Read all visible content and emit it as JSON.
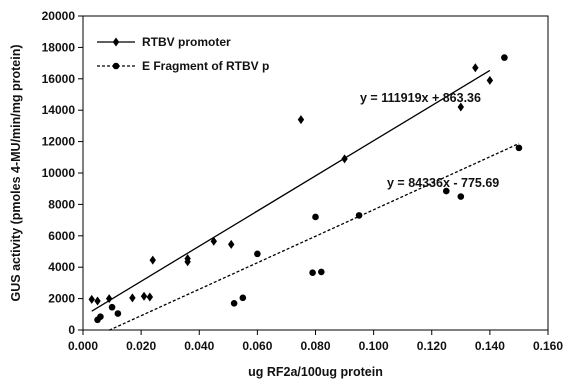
{
  "chart_data": {
    "type": "scatter",
    "xlabel": "ug RF2a/100ug protein",
    "ylabel": "GUS activity (pmoles 4-MU/min/mg protein)",
    "xlim": [
      0,
      0.16
    ],
    "ylim": [
      0,
      20000
    ],
    "x_ticks": [
      0,
      0.02,
      0.04,
      0.06,
      0.08,
      0.1,
      0.12,
      0.14,
      0.16
    ],
    "x_tick_labels": [
      "0.000",
      "0.020",
      "0.040",
      "0.060",
      "0.080",
      "0.100",
      "0.120",
      "0.140",
      "0.160"
    ],
    "y_ticks": [
      0,
      2000,
      4000,
      6000,
      8000,
      10000,
      12000,
      14000,
      16000,
      18000,
      20000
    ],
    "y_tick_labels": [
      "0",
      "2000",
      "4000",
      "6000",
      "8000",
      "10000",
      "12000",
      "14000",
      "16000",
      "18000",
      "20000"
    ],
    "grid": false,
    "legend_position": "top-left",
    "series": [
      {
        "name": "RTBV promoter",
        "marker": "diamond",
        "line_style": "solid",
        "color": "#000000",
        "points": [
          [
            0.003,
            1950
          ],
          [
            0.005,
            1850
          ],
          [
            0.009,
            2000
          ],
          [
            0.017,
            2050
          ],
          [
            0.021,
            2150
          ],
          [
            0.023,
            2100
          ],
          [
            0.024,
            4450
          ],
          [
            0.036,
            4350
          ],
          [
            0.036,
            4550
          ],
          [
            0.045,
            5650
          ],
          [
            0.051,
            5450
          ],
          [
            0.075,
            13400
          ],
          [
            0.09,
            10900
          ],
          [
            0.13,
            14200
          ],
          [
            0.135,
            16700
          ],
          [
            0.14,
            15900
          ]
        ],
        "trendline": {
          "slope": 111919,
          "intercept": 863.36,
          "x_range": [
            0.003,
            0.14
          ],
          "label": "y = 111919x + 863.36"
        }
      },
      {
        "name": "E Fragment of RTBV p",
        "marker": "circle",
        "line_style": "dotted",
        "color": "#000000",
        "points": [
          [
            0.005,
            650
          ],
          [
            0.006,
            850
          ],
          [
            0.01,
            1450
          ],
          [
            0.012,
            1050
          ],
          [
            0.052,
            1700
          ],
          [
            0.055,
            2050
          ],
          [
            0.06,
            4850
          ],
          [
            0.079,
            3650
          ],
          [
            0.08,
            7200
          ],
          [
            0.082,
            3700
          ],
          [
            0.095,
            7300
          ],
          [
            0.125,
            8850
          ],
          [
            0.13,
            8500
          ],
          [
            0.145,
            17350
          ],
          [
            0.15,
            11600
          ]
        ],
        "trendline": {
          "slope": 84336,
          "intercept": -775.69,
          "x_range": [
            0.009,
            0.15
          ],
          "label": "y = 84336x - 775.69"
        }
      }
    ]
  }
}
